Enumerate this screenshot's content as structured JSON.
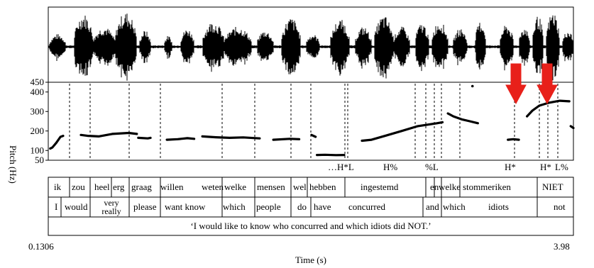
{
  "figure": {
    "x_axis": {
      "label": "Time (s)",
      "start": "0.1306",
      "end": "3.98"
    },
    "pitch": {
      "y_label": "Pitch (Hz)",
      "ticks": [
        "450",
        "400",
        "300",
        "200",
        "100",
        "50"
      ],
      "y_min": 50,
      "y_max": 450
    },
    "tones": [
      "…H*L",
      "H%",
      "%L",
      "H*",
      "H*",
      "L%"
    ],
    "words": [
      "ik",
      "zou",
      "heel",
      "erg",
      "graag",
      "willen",
      "weten",
      "welke",
      "mensen",
      "wel",
      "hebben",
      "ingestemd",
      "en",
      "welke",
      "stommeriken",
      "NIET"
    ],
    "glosses": [
      "I",
      "would",
      "very really",
      "please",
      "want know",
      "which",
      "people",
      "do",
      "have",
      "concurred",
      "and",
      "which",
      "idiots",
      "not"
    ],
    "translation": "‘I would like to know who concurred and which idiots did NOT.’",
    "arrow_color": "#e8201a"
  },
  "chart_data": {
    "type": "line",
    "xlabel": "Time (s)",
    "ylabel": "Pitch (Hz)",
    "xlim": [
      0.1306,
      3.98
    ],
    "ylim": [
      50,
      450
    ],
    "series": [
      {
        "segments": [
          [
            [
              0.145,
              110
            ],
            [
              0.16,
              115
            ],
            [
              0.19,
              140
            ],
            [
              0.22,
              170
            ],
            [
              0.24,
              175
            ]
          ],
          [
            [
              0.37,
              180
            ],
            [
              0.42,
              175
            ],
            [
              0.5,
              172
            ],
            [
              0.6,
              185
            ],
            [
              0.72,
              190
            ],
            [
              0.78,
              185
            ]
          ],
          [
            [
              0.79,
              165
            ],
            [
              0.86,
              162
            ],
            [
              0.88,
              165
            ]
          ],
          [
            [
              1.0,
              155
            ],
            [
              1.08,
              158
            ],
            [
              1.15,
              163
            ],
            [
              1.2,
              160
            ]
          ],
          [
            [
              1.26,
              172
            ],
            [
              1.36,
              168
            ],
            [
              1.46,
              165
            ],
            [
              1.56,
              167
            ],
            [
              1.68,
              162
            ]
          ],
          [
            [
              1.78,
              155
            ],
            [
              1.9,
              160
            ],
            [
              1.97,
              158
            ]
          ],
          [
            [
              2.06,
              180
            ],
            [
              2.09,
              170
            ]
          ],
          [
            [
              2.1,
              77
            ],
            [
              2.16,
              78
            ],
            [
              2.24,
              76
            ],
            [
              2.3,
              77
            ]
          ],
          [
            [
              2.43,
              150
            ],
            [
              2.5,
              155
            ],
            [
              2.6,
              175
            ],
            [
              2.72,
              200
            ],
            [
              2.84,
              225
            ],
            [
              2.98,
              240
            ],
            [
              3.02,
              245
            ]
          ],
          [
            [
              3.06,
              290
            ],
            [
              3.1,
              275
            ],
            [
              3.16,
              260
            ],
            [
              3.22,
              250
            ],
            [
              3.28,
              240
            ]
          ],
          [
            [
              3.5,
              155
            ],
            [
              3.54,
              158
            ],
            [
              3.58,
              155
            ]
          ],
          [
            [
              3.64,
              275
            ],
            [
              3.68,
              305
            ],
            [
              3.73,
              330
            ],
            [
              3.8,
              345
            ],
            [
              3.88,
              355
            ],
            [
              3.95,
              352
            ]
          ],
          [
            [
              3.24,
              430
            ]
          ],
          [
            [
              3.96,
              225
            ],
            [
              3.98,
              215
            ]
          ]
        ]
      }
    ]
  }
}
